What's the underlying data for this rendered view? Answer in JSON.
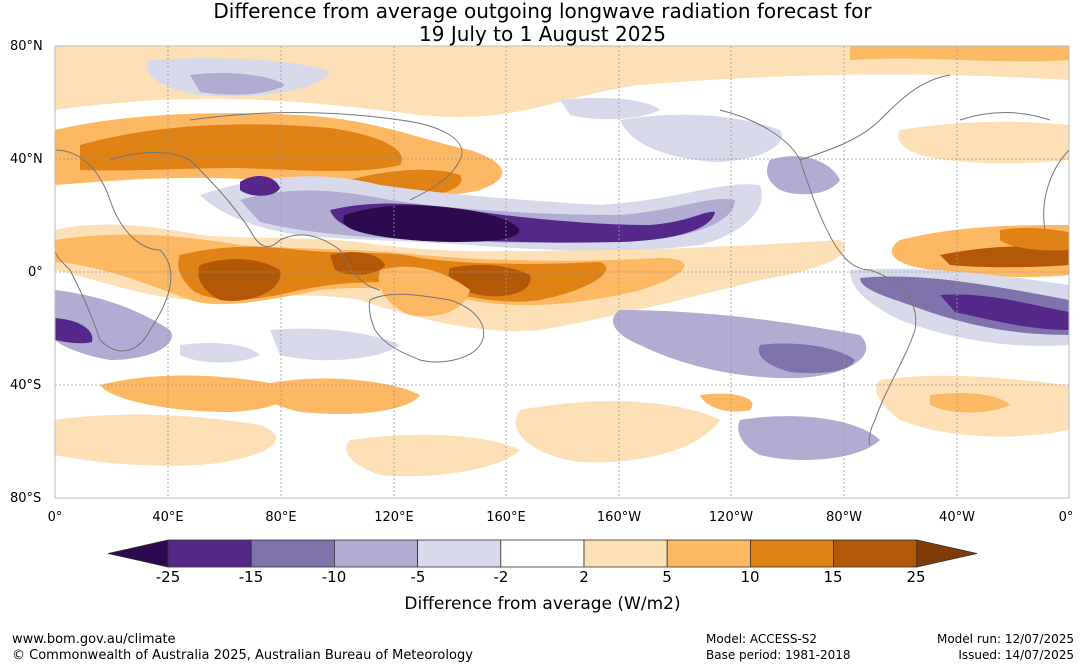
{
  "title": {
    "line1": "Difference from average outgoing longwave radiation forecast for",
    "line2": "19 July to 1 August 2025"
  },
  "map": {
    "lat_labels": [
      "80°N",
      "40°N",
      "0°",
      "40°S",
      "80°S"
    ],
    "lon_labels": [
      "0°",
      "40°E",
      "80°E",
      "120°E",
      "160°E",
      "160°W",
      "120°W",
      "80°W",
      "40°W",
      "0°"
    ]
  },
  "colorbar": {
    "ticks": [
      "-25",
      "-15",
      "-10",
      "-5",
      "-2",
      "2",
      "5",
      "10",
      "15",
      "25"
    ],
    "colors": [
      "#2d0a4e",
      "#542788",
      "#8073ac",
      "#b2abd2",
      "#d8daeb",
      "#ffffff",
      "#fee0b6",
      "#fdb863",
      "#e08214",
      "#b35806",
      "#7f3b08"
    ],
    "title": "Difference from average (W/m2)"
  },
  "footer": {
    "website": "www.bom.gov.au/climate",
    "copyright": "© Commonwealth of Australia 2025, Australian Bureau of Meteorology",
    "model": "Model: ACCESS-S2",
    "base_period": "Base period: 1981-2018",
    "model_run": "Model run: 12/07/2025",
    "issued": "Issued: 14/07/2025"
  }
}
